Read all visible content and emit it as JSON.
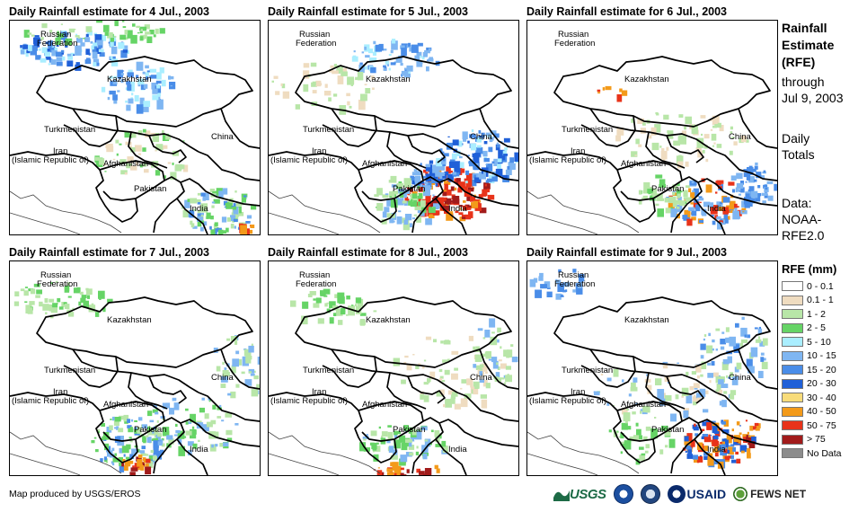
{
  "panels": [
    {
      "title": "Daily Rainfall estimate for 4 Jul., 2003"
    },
    {
      "title": "Daily Rainfall estimate for 5 Jul., 2003"
    },
    {
      "title": "Daily Rainfall estimate for 6 Jul., 2003"
    },
    {
      "title": "Daily Rainfall estimate for 7 Jul., 2003"
    },
    {
      "title": "Daily Rainfall estimate for 8 Jul., 2003"
    },
    {
      "title": "Daily Rainfall estimate for 9 Jul., 2003"
    }
  ],
  "labels": {
    "russia_1": "Russian",
    "russia_2": "Federation",
    "kazakhstan": "Kazakhstan",
    "turkmenistan": "Turkmenistan",
    "china": "China",
    "iran_1": "Iran",
    "iran_2": "(Islamic Republic of)",
    "afghanistan": "Afghanistan",
    "pakistan": "Pakistan",
    "india": "India"
  },
  "sidebar": {
    "title_lines": [
      "Rainfall",
      "Estimate",
      "(RFE)"
    ],
    "through_lines": [
      "through",
      "Jul 9, 2003"
    ],
    "totals_lines": [
      "Daily",
      "Totals"
    ],
    "data_lines": [
      "Data:",
      "NOAA-",
      "RFE2.0"
    ]
  },
  "legend": {
    "title": "RFE (mm)",
    "items": [
      {
        "label": "0 - 0.1",
        "color": "#ffffff"
      },
      {
        "label": "0.1 - 1",
        "color": "#efdcc0"
      },
      {
        "label": "1 - 2",
        "color": "#b8e6a8"
      },
      {
        "label": "2 - 5",
        "color": "#66d466"
      },
      {
        "label": "5 - 10",
        "color": "#aaeeff"
      },
      {
        "label": "10 - 15",
        "color": "#7fb6f2"
      },
      {
        "label": "15 - 20",
        "color": "#4a8de8"
      },
      {
        "label": "20 - 30",
        "color": "#2060d8"
      },
      {
        "label": "30 - 40",
        "color": "#f8dc7a"
      },
      {
        "label": "40 - 50",
        "color": "#f39a1a"
      },
      {
        "label": "50 - 75",
        "color": "#e8331a"
      },
      {
        "label": "> 75",
        "color": "#a11b1b"
      },
      {
        "label": "No Data",
        "color": "#8c8c8c"
      }
    ]
  },
  "footer": {
    "credit": "Map produced by USGS/EROS",
    "logos": [
      {
        "text": "USGS",
        "icon": "usgs-logo"
      },
      {
        "text": "",
        "icon": "noaa-seal-icon"
      },
      {
        "text": "",
        "icon": "dhs-seal-icon"
      },
      {
        "text": "USAID",
        "icon": "usaid-logo"
      },
      {
        "text": "FEWS NET",
        "icon": "fewsnet-logo"
      }
    ]
  }
}
